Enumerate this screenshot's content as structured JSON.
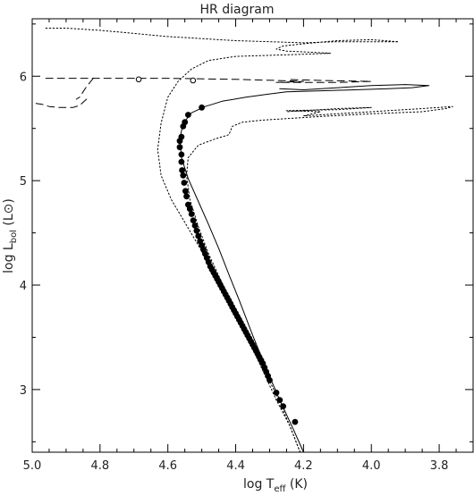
{
  "chart_data": {
    "type": "scatter",
    "title": "HR diagram",
    "xlabel": {
      "main": "log T",
      "sub": "eff",
      "unit": " (K)"
    },
    "ylabel": {
      "main": "log L",
      "sub": "bol",
      "unit": " (L⊙)"
    },
    "xlim": [
      5.0,
      3.7
    ],
    "ylim": [
      2.4,
      6.55
    ],
    "x_ticks": [
      "5.0",
      "4.8",
      "4.6",
      "4.4",
      "4.2",
      "4.0",
      "3.8"
    ],
    "y_ticks": [
      "3",
      "4",
      "5",
      "6"
    ],
    "grid": false,
    "series": [
      {
        "style": "solid",
        "points": [
          [
            4.2,
            2.4
          ],
          [
            4.23,
            2.62
          ],
          [
            4.27,
            2.9
          ],
          [
            4.31,
            3.2
          ],
          [
            4.35,
            3.52
          ],
          [
            4.39,
            3.86
          ],
          [
            4.42,
            4.1
          ],
          [
            4.45,
            4.35
          ],
          [
            4.48,
            4.58
          ],
          [
            4.51,
            4.8
          ],
          [
            4.54,
            5.02
          ],
          [
            4.56,
            5.22
          ],
          [
            4.565,
            5.4
          ],
          [
            4.555,
            5.55
          ],
          [
            4.53,
            5.65
          ],
          [
            4.49,
            5.71
          ],
          [
            4.44,
            5.76
          ],
          [
            4.37,
            5.8
          ],
          [
            4.3,
            5.83
          ],
          [
            4.25,
            5.85
          ],
          [
            4.15,
            5.86
          ],
          [
            4.05,
            5.87
          ],
          [
            3.95,
            5.88
          ],
          [
            3.88,
            5.89
          ],
          [
            3.83,
            5.91
          ],
          [
            3.9,
            5.92
          ],
          [
            4.0,
            5.91
          ],
          [
            4.1,
            5.89
          ],
          [
            4.2,
            5.87
          ],
          [
            4.27,
            5.88
          ]
        ]
      },
      {
        "style": "dashed",
        "points": [
          [
            4.84,
            5.78
          ],
          [
            4.86,
            5.72
          ],
          [
            4.88,
            5.7
          ],
          [
            4.92,
            5.7
          ],
          [
            4.95,
            5.71
          ],
          [
            4.97,
            5.73
          ],
          [
            4.99,
            5.74
          ]
        ]
      },
      {
        "style": "dashed",
        "points": [
          [
            4.96,
            5.98
          ],
          [
            4.8,
            5.98
          ],
          [
            4.6,
            5.98
          ],
          [
            4.4,
            5.97
          ],
          [
            4.28,
            5.96
          ],
          [
            4.2,
            5.95
          ],
          [
            4.28,
            5.94
          ],
          [
            4.1,
            5.94
          ],
          [
            4.0,
            5.95
          ],
          [
            4.15,
            5.96
          ],
          [
            4.25,
            5.97
          ]
        ]
      },
      {
        "style": "dashed",
        "points": [
          [
            4.82,
            5.98
          ],
          [
            4.84,
            5.9
          ],
          [
            4.85,
            5.85
          ],
          [
            4.86,
            5.8
          ],
          [
            4.87,
            5.78
          ]
        ]
      },
      {
        "style": "dotted",
        "points": [
          [
            4.96,
            6.46
          ],
          [
            4.9,
            6.46
          ],
          [
            4.8,
            6.44
          ],
          [
            4.7,
            6.41
          ],
          [
            4.6,
            6.38
          ],
          [
            4.5,
            6.36
          ],
          [
            4.4,
            6.34
          ],
          [
            4.3,
            6.33
          ],
          [
            4.2,
            6.32
          ],
          [
            4.1,
            6.33
          ],
          [
            4.0,
            6.33
          ],
          [
            3.92,
            6.33
          ],
          [
            4.0,
            6.35
          ],
          [
            4.1,
            6.34
          ],
          [
            4.2,
            6.31
          ],
          [
            4.26,
            6.29
          ],
          [
            4.28,
            6.26
          ],
          [
            4.25,
            6.24
          ],
          [
            4.18,
            6.23
          ],
          [
            4.12,
            6.22
          ],
          [
            4.2,
            6.21
          ],
          [
            4.3,
            6.2
          ],
          [
            4.4,
            6.19
          ],
          [
            4.48,
            6.15
          ],
          [
            4.53,
            6.07
          ],
          [
            4.57,
            5.95
          ],
          [
            4.6,
            5.8
          ],
          [
            4.62,
            5.55
          ],
          [
            4.63,
            5.3
          ],
          [
            4.62,
            5.05
          ],
          [
            4.59,
            4.82
          ],
          [
            4.55,
            4.6
          ],
          [
            4.51,
            4.38
          ],
          [
            4.47,
            4.15
          ],
          [
            4.43,
            3.92
          ],
          [
            4.39,
            3.68
          ],
          [
            4.35,
            3.42
          ],
          [
            4.31,
            3.15
          ],
          [
            4.27,
            2.88
          ],
          [
            4.24,
            2.65
          ],
          [
            4.21,
            2.4
          ]
        ]
      },
      {
        "style": "dotted",
        "points": [
          [
            4.21,
            2.4
          ],
          [
            4.24,
            2.65
          ],
          [
            4.28,
            2.9
          ],
          [
            4.32,
            3.18
          ],
          [
            4.36,
            3.46
          ],
          [
            4.4,
            3.74
          ],
          [
            4.44,
            4.02
          ],
          [
            4.48,
            4.3
          ],
          [
            4.51,
            4.56
          ],
          [
            4.535,
            4.82
          ],
          [
            4.545,
            5.05
          ],
          [
            4.54,
            5.22
          ],
          [
            4.51,
            5.34
          ],
          [
            4.46,
            5.4
          ],
          [
            4.42,
            5.44
          ],
          [
            4.41,
            5.52
          ],
          [
            4.38,
            5.56
          ],
          [
            4.32,
            5.58
          ],
          [
            4.22,
            5.6
          ],
          [
            4.12,
            5.62
          ],
          [
            4.0,
            5.64
          ],
          [
            3.85,
            5.66
          ],
          [
            3.78,
            5.69
          ],
          [
            3.76,
            5.71
          ],
          [
            3.85,
            5.69
          ],
          [
            4.0,
            5.66
          ],
          [
            4.1,
            5.64
          ],
          [
            4.2,
            5.62
          ],
          [
            4.15,
            5.66
          ],
          [
            4.25,
            5.67
          ],
          [
            4.1,
            5.68
          ],
          [
            4.0,
            5.7
          ],
          [
            4.1,
            5.69
          ],
          [
            4.25,
            5.66
          ]
        ]
      }
    ],
    "filled_points": [
      [
        4.5,
        5.7
      ],
      [
        4.54,
        5.63
      ],
      [
        4.55,
        5.56
      ],
      [
        4.555,
        5.52
      ],
      [
        4.56,
        5.42
      ],
      [
        4.565,
        5.38
      ],
      [
        4.565,
        5.32
      ],
      [
        4.56,
        5.25
      ],
      [
        4.56,
        5.18
      ],
      [
        4.558,
        5.1
      ],
      [
        4.555,
        5.05
      ],
      [
        4.552,
        4.98
      ],
      [
        4.548,
        4.9
      ],
      [
        4.545,
        4.85
      ],
      [
        4.54,
        4.77
      ],
      [
        4.535,
        4.73
      ],
      [
        4.53,
        4.68
      ],
      [
        4.525,
        4.62
      ],
      [
        4.52,
        4.57
      ],
      [
        4.515,
        4.52
      ],
      [
        4.51,
        4.47
      ],
      [
        4.505,
        4.42
      ],
      [
        4.5,
        4.38
      ],
      [
        4.495,
        4.34
      ],
      [
        4.49,
        4.3
      ],
      [
        4.485,
        4.26
      ],
      [
        4.48,
        4.22
      ],
      [
        4.475,
        4.18
      ],
      [
        4.47,
        4.15
      ],
      [
        4.465,
        4.12
      ],
      [
        4.46,
        4.09
      ],
      [
        4.455,
        4.06
      ],
      [
        4.45,
        4.03
      ],
      [
        4.445,
        4.0
      ],
      [
        4.44,
        3.97
      ],
      [
        4.435,
        3.94
      ],
      [
        4.43,
        3.91
      ],
      [
        4.425,
        3.88
      ],
      [
        4.42,
        3.85
      ],
      [
        4.415,
        3.82
      ],
      [
        4.41,
        3.79
      ],
      [
        4.405,
        3.76
      ],
      [
        4.4,
        3.73
      ],
      [
        4.395,
        3.7
      ],
      [
        4.39,
        3.67
      ],
      [
        4.385,
        3.64
      ],
      [
        4.38,
        3.61
      ],
      [
        4.375,
        3.58
      ],
      [
        4.37,
        3.55
      ],
      [
        4.365,
        3.52
      ],
      [
        4.36,
        3.49
      ],
      [
        4.355,
        3.46
      ],
      [
        4.35,
        3.43
      ],
      [
        4.345,
        3.4
      ],
      [
        4.34,
        3.37
      ],
      [
        4.335,
        3.34
      ],
      [
        4.33,
        3.31
      ],
      [
        4.325,
        3.28
      ],
      [
        4.32,
        3.25
      ],
      [
        4.315,
        3.21
      ],
      [
        4.31,
        3.17
      ],
      [
        4.305,
        3.13
      ],
      [
        4.3,
        3.09
      ],
      [
        4.28,
        2.97
      ],
      [
        4.27,
        2.9
      ],
      [
        4.26,
        2.84
      ],
      [
        4.225,
        2.69
      ]
    ],
    "open_points": [
      [
        4.686,
        5.97
      ],
      [
        4.526,
        5.96
      ]
    ]
  }
}
